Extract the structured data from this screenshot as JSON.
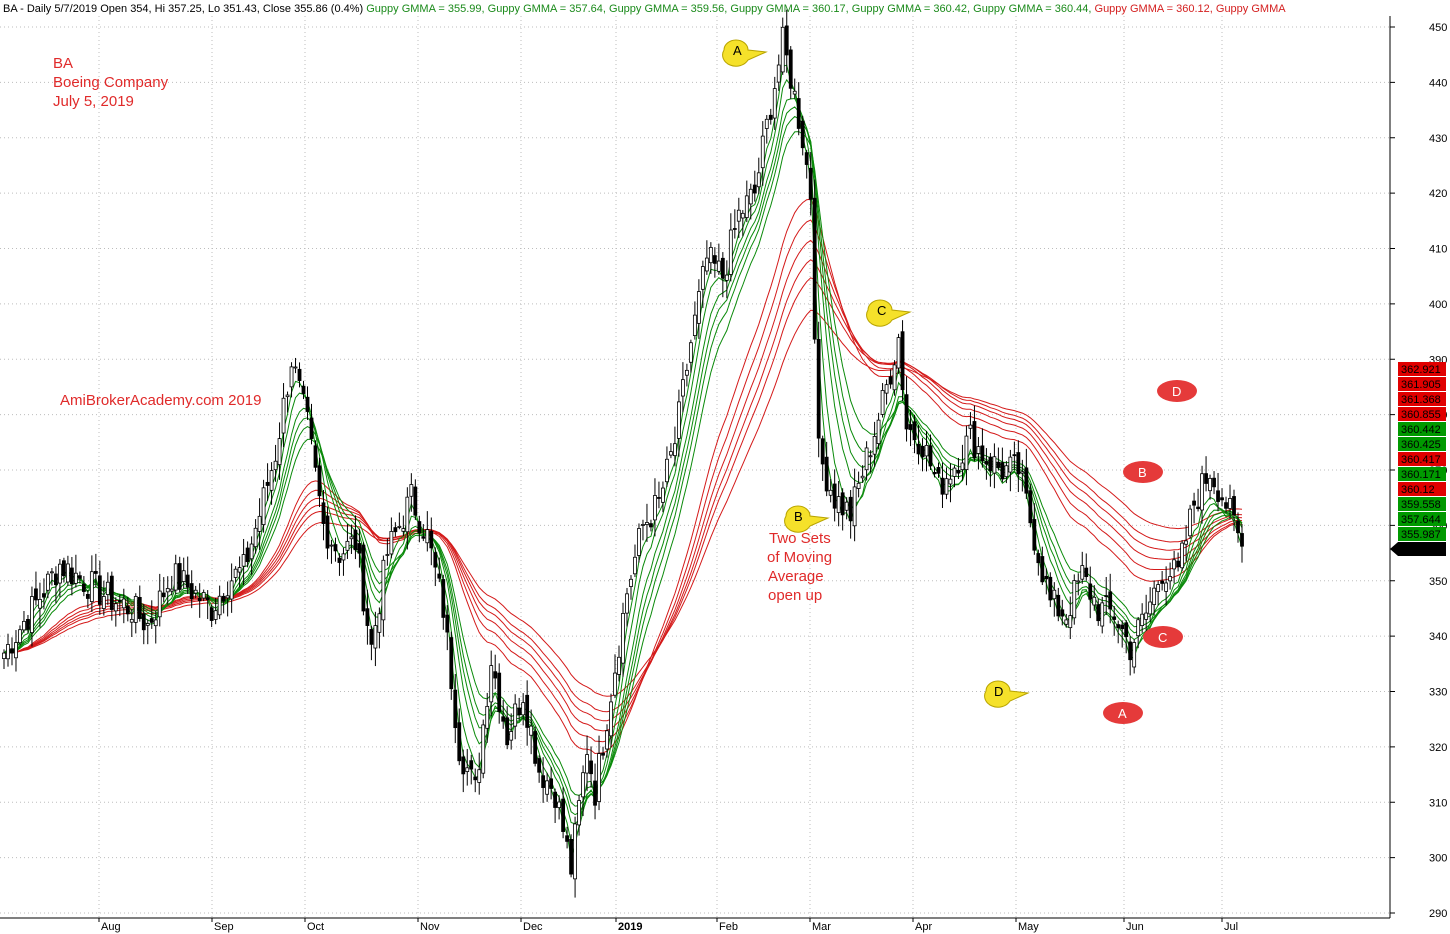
{
  "header": {
    "symbol_info": "BA - Daily 5/7/2019 Open 354, Hi 357.25, Lo 351.43, Close 355.86 (0.4%)",
    "gmma_labels": [
      {
        "text": "Guppy GMMA = 355.99,",
        "color": "#1a8a1a"
      },
      {
        "text": "Guppy GMMA = 357.64,",
        "color": "#1a8a1a"
      },
      {
        "text": "Guppy GMMA = 359.56,",
        "color": "#1a8a1a"
      },
      {
        "text": "Guppy GMMA = 360.17,",
        "color": "#1a8a1a"
      },
      {
        "text": "Guppy GMMA = 360.42,",
        "color": "#1a8a1a"
      },
      {
        "text": "Guppy GMMA = 360.44,",
        "color": "#1a8a1a"
      },
      {
        "text": "Guppy GMMA = 360.12,",
        "color": "#d42020"
      },
      {
        "text": "Guppy GMMA",
        "color": "#d42020"
      }
    ]
  },
  "annotations": {
    "ticker": "BA",
    "company": "Boeing Company",
    "date": "July 5, 2019",
    "watermark": "AmiBrokerAcademy.com  2019",
    "note_lines": [
      "Two Sets",
      "of Moving",
      "Average",
      "open up"
    ]
  },
  "markers": {
    "yellow": [
      {
        "label": "A",
        "x": "Mar 2019",
        "y": 449
      },
      {
        "label": "C",
        "x": "Mar 2019",
        "y": 399
      },
      {
        "label": "B",
        "x": "Mar 2019",
        "y": 356
      },
      {
        "label": "D",
        "x": "May 2019",
        "y": 330
      }
    ],
    "red": [
      {
        "label": "D",
        "x": "Jun 2019",
        "y": 390
      },
      {
        "label": "B",
        "x": "Jun 2019",
        "y": 365
      },
      {
        "label": "C",
        "x": "Jun 2019",
        "y": 340
      },
      {
        "label": "A",
        "x": "Jun 2019",
        "y": 327
      }
    ]
  },
  "right_labels": [
    {
      "text": "362.921",
      "value": 362.921,
      "color": "#e00000"
    },
    {
      "text": "361.905",
      "value": 361.905,
      "color": "#e00000"
    },
    {
      "text": "361.368",
      "value": 361.368,
      "color": "#e00000"
    },
    {
      "text": "360.855",
      "value": 360.855,
      "color": "#e00000"
    },
    {
      "text": "360.442",
      "value": 360.442,
      "color": "#009900"
    },
    {
      "text": "360.425",
      "value": 360.425,
      "color": "#009900"
    },
    {
      "text": "360.417",
      "value": 360.417,
      "color": "#e00000"
    },
    {
      "text": "360.171",
      "value": 360.171,
      "color": "#009900"
    },
    {
      "text": "360.12",
      "value": 360.12,
      "color": "#e00000"
    },
    {
      "text": "359.558",
      "value": 359.558,
      "color": "#009900"
    },
    {
      "text": "357.644",
      "value": 357.644,
      "color": "#009900"
    },
    {
      "text": "355.987",
      "value": 355.987,
      "color": "#009900"
    },
    {
      "text": "355.86",
      "value": 355.86,
      "color": "#000000"
    }
  ],
  "chart_data": {
    "type": "candlestick",
    "ylim": [
      288,
      452
    ],
    "y_ticks": [
      290,
      300,
      310,
      320,
      330,
      340,
      350,
      360,
      370,
      380,
      390,
      400,
      410,
      420,
      430,
      440,
      450
    ],
    "x_labels": [
      {
        "label": "Aug",
        "bold": false
      },
      {
        "label": "Sep",
        "bold": false
      },
      {
        "label": "Oct",
        "bold": false
      },
      {
        "label": "Nov",
        "bold": false
      },
      {
        "label": "Dec",
        "bold": false
      },
      {
        "label": "2019",
        "bold": true
      },
      {
        "label": "Feb",
        "bold": false
      },
      {
        "label": "Mar",
        "bold": false
      },
      {
        "label": "Apr",
        "bold": false
      },
      {
        "label": "May",
        "bold": false
      },
      {
        "label": "Jun",
        "bold": false
      },
      {
        "label": "Jul",
        "bold": false
      }
    ],
    "colors": {
      "short_gmma": "#0a8a0a",
      "long_gmma": "#d41a1a",
      "up_candle": "#ffffff",
      "down_candle": "#000000"
    },
    "close_anchors": [
      [
        0,
        337
      ],
      [
        8,
        346
      ],
      [
        14,
        353
      ],
      [
        20,
        350
      ],
      [
        26,
        347
      ],
      [
        32,
        345
      ],
      [
        36,
        342
      ],
      [
        42,
        351
      ],
      [
        46,
        349
      ],
      [
        52,
        345
      ],
      [
        56,
        350
      ],
      [
        60,
        352
      ],
      [
        64,
        362
      ],
      [
        68,
        373
      ],
      [
        72,
        390
      ],
      [
        76,
        378
      ],
      [
        80,
        360
      ],
      [
        84,
        355
      ],
      [
        88,
        357
      ],
      [
        92,
        338
      ],
      [
        96,
        355
      ],
      [
        102,
        365
      ],
      [
        106,
        358
      ],
      [
        110,
        345
      ],
      [
        114,
        320
      ],
      [
        118,
        312
      ],
      [
        122,
        336
      ],
      [
        126,
        322
      ],
      [
        130,
        330
      ],
      [
        134,
        316
      ],
      [
        138,
        312
      ],
      [
        142,
        298
      ],
      [
        146,
        320
      ],
      [
        148,
        312
      ],
      [
        152,
        330
      ],
      [
        156,
        348
      ],
      [
        160,
        360
      ],
      [
        164,
        364
      ],
      [
        168,
        375
      ],
      [
        172,
        393
      ],
      [
        176,
        408
      ],
      [
        180,
        405
      ],
      [
        184,
        416
      ],
      [
        188,
        420
      ],
      [
        192,
        436
      ],
      [
        195,
        447
      ],
      [
        197,
        441
      ],
      [
        200,
        430
      ],
      [
        202,
        420
      ],
      [
        204,
        373
      ],
      [
        208,
        365
      ],
      [
        212,
        362
      ],
      [
        216,
        372
      ],
      [
        220,
        382
      ],
      [
        224,
        394
      ],
      [
        226,
        378
      ],
      [
        230,
        375
      ],
      [
        234,
        367
      ],
      [
        238,
        371
      ],
      [
        242,
        376
      ],
      [
        246,
        372
      ],
      [
        250,
        370
      ],
      [
        254,
        370
      ],
      [
        258,
        358
      ],
      [
        262,
        346
      ],
      [
        266,
        344
      ],
      [
        270,
        351
      ],
      [
        274,
        345
      ],
      [
        278,
        344
      ],
      [
        282,
        338
      ],
      [
        286,
        344
      ],
      [
        290,
        352
      ],
      [
        294,
        351
      ],
      [
        298,
        364
      ],
      [
        302,
        370
      ],
      [
        306,
        364
      ],
      [
        310,
        356
      ]
    ],
    "series": [
      {
        "group": "short",
        "period": 3,
        "last": 355.987
      },
      {
        "group": "short",
        "period": 5,
        "last": 357.644
      },
      {
        "group": "short",
        "period": 8,
        "last": 359.558
      },
      {
        "group": "short",
        "period": 10,
        "last": 360.171
      },
      {
        "group": "short",
        "period": 12,
        "last": 360.425
      },
      {
        "group": "short",
        "period": 15,
        "last": 360.442
      },
      {
        "group": "long",
        "period": 30,
        "last": 360.12
      },
      {
        "group": "long",
        "period": 35,
        "last": 360.417
      },
      {
        "group": "long",
        "period": 40,
        "last": 360.855
      },
      {
        "group": "long",
        "period": 45,
        "last": 361.368
      },
      {
        "group": "long",
        "period": 50,
        "last": 361.905
      },
      {
        "group": "long",
        "period": 60,
        "last": 362.921
      }
    ]
  }
}
